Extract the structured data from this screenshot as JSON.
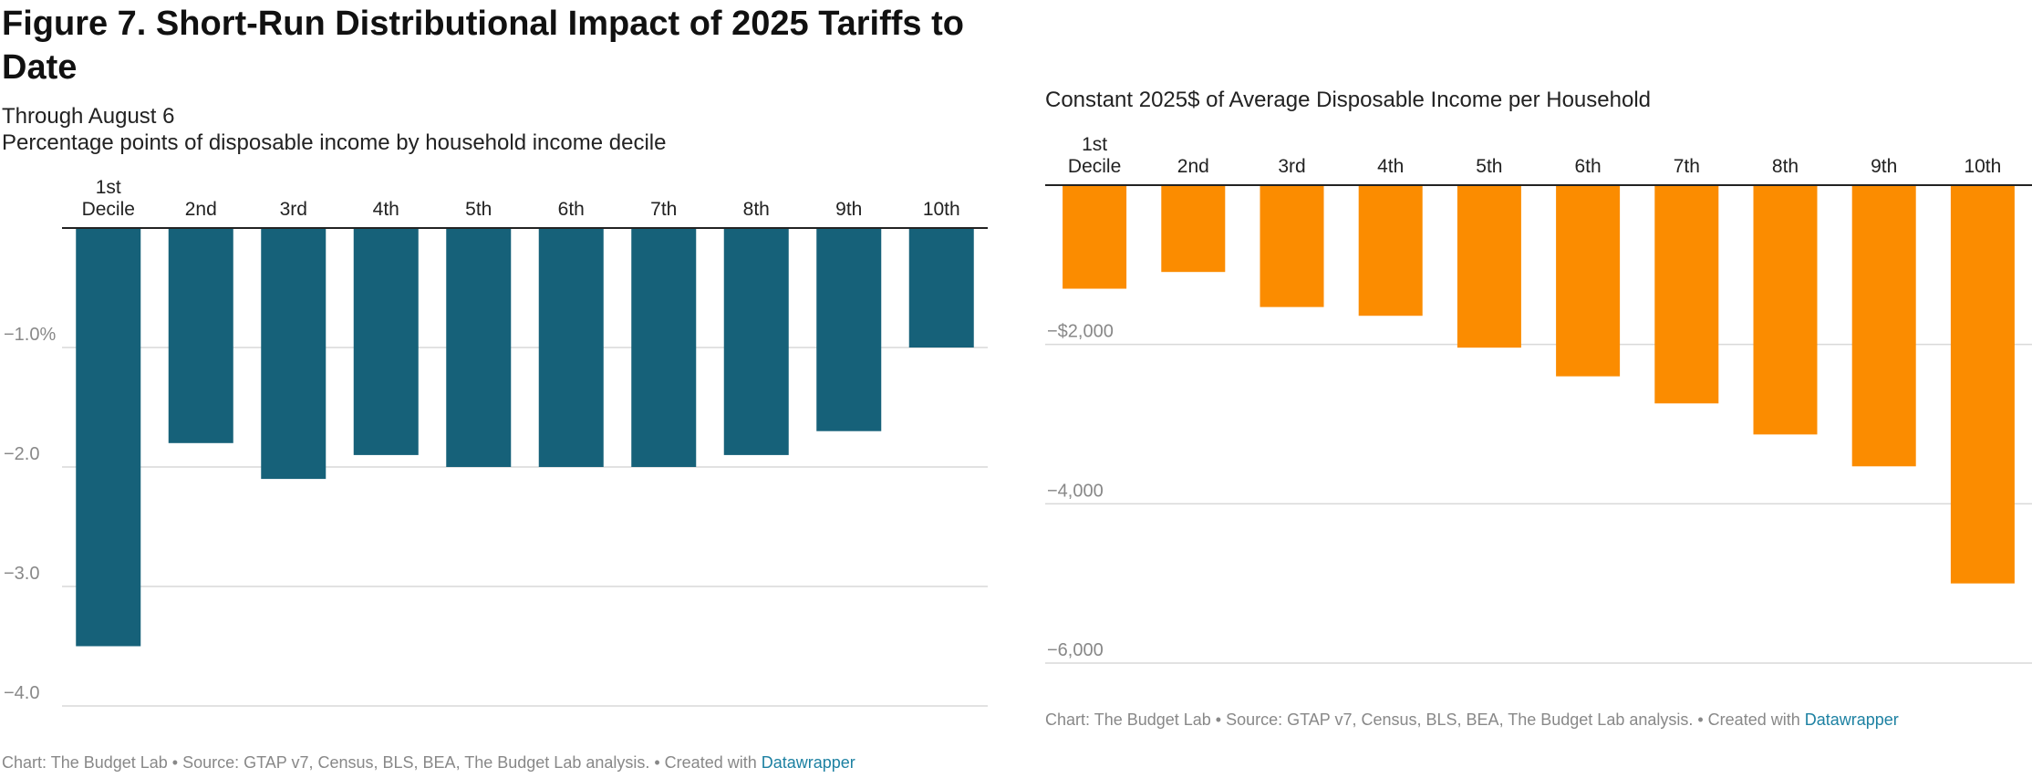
{
  "page": {
    "title": "Figure 7. Short-Run Distributional Impact of 2025 Tariffs to Date",
    "subtitle_line1": "Through August 6",
    "subtitle_line2": "Percentage points of disposable income by household income decile"
  },
  "colors": {
    "left_bars": "#166179",
    "right_bars": "#fb8c00",
    "grid": "#d9d9d9",
    "axis_text": "#888888",
    "link": "#1d81a2"
  },
  "chart_data": [
    {
      "type": "bar",
      "title": "",
      "categories": [
        "1st\nDecile",
        "2nd",
        "3rd",
        "4th",
        "5th",
        "6th",
        "7th",
        "8th",
        "9th",
        "10th"
      ],
      "values": [
        -3.5,
        -1.8,
        -2.1,
        -1.9,
        -2.0,
        -2.0,
        -2.0,
        -1.9,
        -1.7,
        -1.0
      ],
      "ylim": [
        -4.0,
        0
      ],
      "yticks": [
        -1.0,
        -2.0,
        -3.0,
        -4.0
      ],
      "ytick_labels": [
        "−1.0%",
        "−2.0",
        "−3.0",
        "−4.0"
      ],
      "xlabel": "",
      "ylabel": "",
      "category_axis": "top",
      "grid": true,
      "footer": {
        "text": "Chart: The Budget Lab • Source: GTAP v7, Census, BLS, BEA, The Budget Lab analysis. • Created with ",
        "link": "Datawrapper"
      }
    },
    {
      "type": "bar",
      "title": "Constant 2025$ of Average Disposable Income per Household",
      "categories": [
        "1st\nDecile",
        "2nd",
        "3rd",
        "4th",
        "5th",
        "6th",
        "7th",
        "8th",
        "9th",
        "10th"
      ],
      "values": [
        -1300,
        -1090,
        -1530,
        -1640,
        -2040,
        -2400,
        -2740,
        -3130,
        -3530,
        -5000
      ],
      "ylim": [
        -6000,
        0
      ],
      "yticks": [
        -2000,
        -4000,
        -6000
      ],
      "ytick_labels": [
        "−$2,000",
        "−4,000",
        "−6,000"
      ],
      "xlabel": "",
      "ylabel": "",
      "category_axis": "top",
      "grid": true,
      "footer": {
        "text": "Chart: The Budget Lab • Source: GTAP v7, Census, BLS, BEA, The Budget Lab analysis. • Created with ",
        "link": "Datawrapper"
      }
    }
  ]
}
